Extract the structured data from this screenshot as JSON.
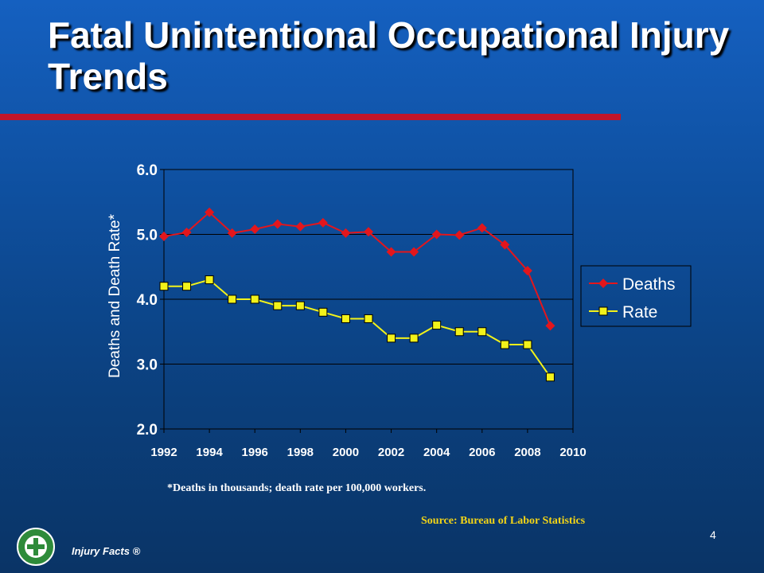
{
  "slide": {
    "title": "Fatal Unintentional Occupational Injury Trends",
    "footnote": "*Deaths in thousands; death rate per 100,000 workers.",
    "source": "Source: Bureau of Labor Statistics",
    "page_number": "4",
    "brand": "Injury Facts ®",
    "logo_icon": "national-safety-council-logo",
    "colors": {
      "background": "#0e4f9e",
      "title_rule": "#c0152a",
      "source_text": "#f2d417"
    }
  },
  "chart_data": {
    "type": "line",
    "title": "",
    "xlabel": "",
    "ylabel": "Deaths and Death Rate*",
    "xlim": [
      1992,
      2010
    ],
    "ylim": [
      2.0,
      6.0
    ],
    "x_ticks": [
      "1992",
      "1994",
      "1996",
      "1998",
      "2000",
      "2002",
      "2004",
      "2006",
      "2008",
      "2010"
    ],
    "y_ticks": [
      "2.0",
      "3.0",
      "4.0",
      "5.0",
      "6.0"
    ],
    "grid": "horizontal",
    "legend_position": "right",
    "x": [
      1992,
      1993,
      1994,
      1995,
      1996,
      1997,
      1998,
      1999,
      2000,
      2001,
      2002,
      2003,
      2004,
      2005,
      2006,
      2007,
      2008,
      2009
    ],
    "series": [
      {
        "name": "Deaths",
        "color": "#e3161c",
        "marker": "diamond",
        "values": [
          4.97,
          5.03,
          5.34,
          5.02,
          5.08,
          5.16,
          5.12,
          5.18,
          5.02,
          5.04,
          4.73,
          4.73,
          5.0,
          4.99,
          5.1,
          4.84,
          4.44,
          3.59
        ]
      },
      {
        "name": "Rate",
        "color": "#f2f21a",
        "marker": "square",
        "values": [
          4.2,
          4.2,
          4.3,
          4.0,
          4.0,
          3.9,
          3.9,
          3.8,
          3.7,
          3.7,
          3.4,
          3.4,
          3.6,
          3.5,
          3.5,
          3.3,
          3.3,
          2.8
        ]
      }
    ]
  }
}
